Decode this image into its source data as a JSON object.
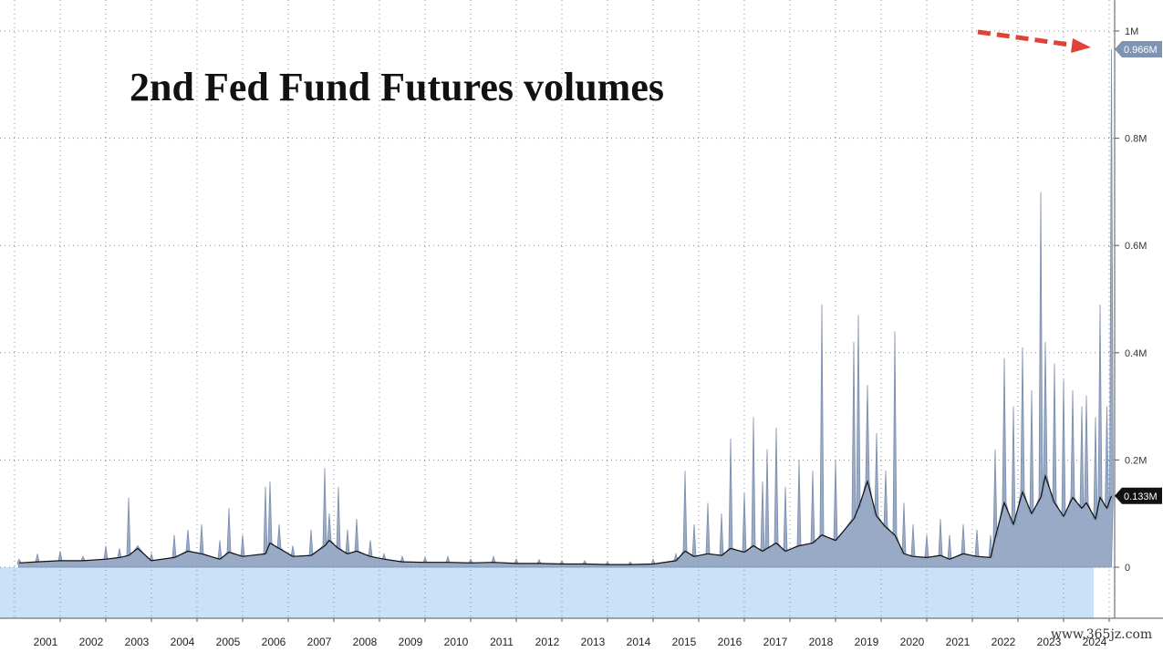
{
  "chart_data": {
    "type": "area",
    "title": "2nd Fed Fund Futures volumes",
    "xlabel": "",
    "ylabel": "",
    "y_ticks": [
      "0",
      "0.2M",
      "0.4M",
      "0.6M",
      "0.8M",
      "1M"
    ],
    "y_tick_values": [
      0,
      200000,
      400000,
      600000,
      800000,
      1000000
    ],
    "ylim": [
      -90000,
      1050000
    ],
    "x_ticks": [
      "2001",
      "2002",
      "2003",
      "2004",
      "2005",
      "2006",
      "2007",
      "2008",
      "2009",
      "2010",
      "2011",
      "2012",
      "2013",
      "2014",
      "2015",
      "2016",
      "2017",
      "2018",
      "2019",
      "2020",
      "2021",
      "2022",
      "2023",
      "2024"
    ],
    "xlim": [
      2000.6,
      2024.6
    ],
    "grid": true,
    "series": [
      {
        "values_description_free": true,
        "x": [
          2000.6,
          2001.0,
          2001.5,
          2002.0,
          2002.5,
          2002.8,
          2003.0,
          2003.2,
          2003.5,
          2004.0,
          2004.3,
          2004.6,
          2005.0,
          2005.2,
          2005.5,
          2006.0,
          2006.1,
          2006.3,
          2006.6,
          2007.0,
          2007.3,
          2007.4,
          2007.6,
          2007.8,
          2008.0,
          2008.3,
          2008.6,
          2009.0,
          2009.5,
          2010.0,
          2010.5,
          2011.0,
          2011.5,
          2012.0,
          2012.5,
          2013.0,
          2013.5,
          2014.0,
          2014.5,
          2015.0,
          2015.2,
          2015.4,
          2015.7,
          2016.0,
          2016.2,
          2016.5,
          2016.7,
          2016.9,
          2017.0,
          2017.2,
          2017.4,
          2017.7,
          2018.0,
          2018.2,
          2018.5,
          2018.9,
          2019.0,
          2019.2,
          2019.4,
          2019.6,
          2019.8,
          2020.0,
          2020.2,
          2020.5,
          2020.8,
          2021.0,
          2021.3,
          2021.6,
          2021.9,
          2022.0,
          2022.2,
          2022.4,
          2022.6,
          2022.8,
          2023.0,
          2023.1,
          2023.3,
          2023.5,
          2023.7,
          2023.9,
          2024.0,
          2024.2,
          2024.3,
          2024.45,
          2024.55
        ],
        "values": [
          8000,
          10000,
          12000,
          12000,
          15000,
          18000,
          22000,
          35000,
          12000,
          18000,
          30000,
          25000,
          15000,
          28000,
          20000,
          25000,
          45000,
          35000,
          20000,
          22000,
          40000,
          50000,
          35000,
          25000,
          30000,
          20000,
          15000,
          10000,
          9000,
          9000,
          8000,
          9000,
          7000,
          7000,
          6000,
          6000,
          5000,
          5000,
          6000,
          12000,
          30000,
          20000,
          25000,
          22000,
          35000,
          28000,
          40000,
          30000,
          35000,
          45000,
          30000,
          40000,
          45000,
          60000,
          50000,
          90000,
          110000,
          160000,
          95000,
          75000,
          60000,
          25000,
          20000,
          18000,
          22000,
          15000,
          25000,
          20000,
          18000,
          55000,
          120000,
          80000,
          140000,
          100000,
          130000,
          170000,
          120000,
          95000,
          130000,
          110000,
          120000,
          90000,
          130000,
          110000,
          133000
        ],
        "color": "#111111"
      },
      {
        "x": [
          2000.6,
          2001.0,
          2001.5,
          2002.0,
          2002.5,
          2002.8,
          2003.0,
          2003.2,
          2003.5,
          2004.0,
          2004.3,
          2004.6,
          2005.0,
          2005.2,
          2005.5,
          2006.0,
          2006.1,
          2006.3,
          2006.6,
          2007.0,
          2007.3,
          2007.4,
          2007.6,
          2007.8,
          2008.0,
          2008.3,
          2008.6,
          2009.0,
          2009.5,
          2010.0,
          2010.5,
          2011.0,
          2011.5,
          2012.0,
          2012.5,
          2013.0,
          2013.5,
          2014.0,
          2014.5,
          2015.0,
          2015.2,
          2015.4,
          2015.7,
          2016.0,
          2016.2,
          2016.5,
          2016.7,
          2016.9,
          2017.0,
          2017.2,
          2017.4,
          2017.7,
          2018.0,
          2018.2,
          2018.5,
          2018.9,
          2019.0,
          2019.2,
          2019.4,
          2019.6,
          2019.8,
          2020.0,
          2020.2,
          2020.5,
          2020.8,
          2021.0,
          2021.3,
          2021.6,
          2021.9,
          2022.0,
          2022.2,
          2022.4,
          2022.6,
          2022.8,
          2023.0,
          2023.1,
          2023.3,
          2023.5,
          2023.7,
          2023.9,
          2024.0,
          2024.2,
          2024.3,
          2024.45,
          2024.55
        ],
        "values": [
          15000,
          25000,
          30000,
          20000,
          40000,
          35000,
          130000,
          40000,
          25000,
          60000,
          70000,
          80000,
          50000,
          110000,
          60000,
          150000,
          160000,
          80000,
          40000,
          70000,
          185000,
          100000,
          150000,
          70000,
          90000,
          50000,
          25000,
          20000,
          18000,
          20000,
          15000,
          20000,
          15000,
          14000,
          12000,
          12000,
          10000,
          10000,
          15000,
          25000,
          180000,
          80000,
          120000,
          100000,
          240000,
          140000,
          280000,
          160000,
          220000,
          260000,
          150000,
          200000,
          180000,
          490000,
          200000,
          420000,
          470000,
          340000,
          250000,
          180000,
          440000,
          120000,
          80000,
          60000,
          90000,
          60000,
          80000,
          70000,
          60000,
          220000,
          390000,
          300000,
          410000,
          330000,
          700000,
          420000,
          380000,
          350000,
          330000,
          300000,
          320000,
          280000,
          490000,
          300000,
          966000
        ],
        "color": "#7f93b3"
      }
    ],
    "last_value_labels": [
      "0.966M",
      "0.133M"
    ],
    "annotation": "red dashed arrow pointing to the 0.966M spike"
  },
  "watermark": "www.365jz.com",
  "colors": {
    "background": "#ffffff",
    "fill_below_zero": "#c9e2f8",
    "volume_fill": "#8ea1c0",
    "average_line": "#111111",
    "grid": "#888888",
    "arrow": "#e0423a",
    "badge_dark": "#111111",
    "badge_blue": "#6f85a8"
  }
}
